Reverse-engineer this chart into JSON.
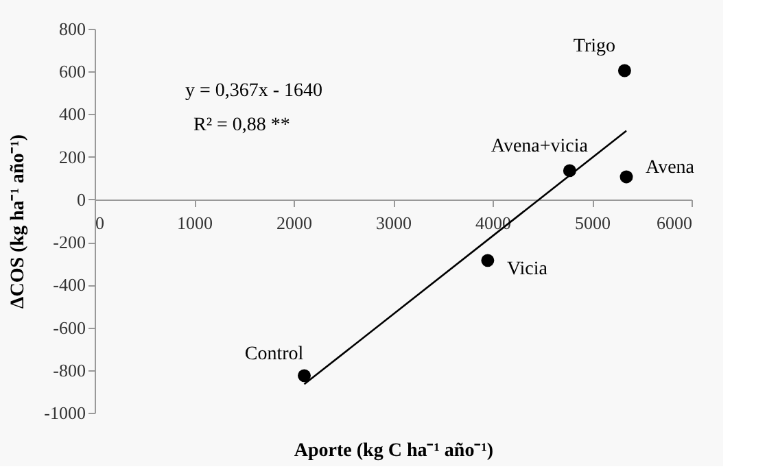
{
  "chart_data": {
    "type": "scatter",
    "xlabel": "Aporte (kg C ha⁻¹ año⁻¹)",
    "ylabel": "ΔCOS (kg ha⁻¹ año⁻¹)",
    "series": [
      {
        "color": "#000000",
        "marker": "circle",
        "x": [
          5327,
          5345,
          4775,
          3951,
          2107
        ],
        "values": [
          604,
          106,
          135,
          -286,
          -826
        ]
      },
      {
        "type": "line",
        "color": "#000000",
        "marker": "none",
        "line_style": "solid",
        "x": [
          2107,
          5345
        ],
        "values": [
          -866,
          322
        ]
      }
    ],
    "annotations": [
      {
        "text": "Trigo",
        "x": 5327,
        "y": 604
      },
      {
        "text": "Avena",
        "x": 5345,
        "y": 106
      },
      {
        "text": "Avena+vicia",
        "x": 4775,
        "y": 135
      },
      {
        "text": "Vicia",
        "x": 3951,
        "y": -286
      },
      {
        "text": "Control",
        "x": 2107,
        "y": -826
      },
      "y = 0,367x - 1640",
      "R² = 0,88 **"
    ],
    "xlim": [
      0,
      6000
    ],
    "xticks": [
      0,
      1000,
      2000,
      3000,
      4000,
      5000,
      6000
    ],
    "ylim": [
      -1000,
      800
    ],
    "yticks": [
      -1000,
      -800,
      -600,
      -400,
      -200,
      0,
      200,
      400,
      600,
      800
    ],
    "grid": false
  }
}
